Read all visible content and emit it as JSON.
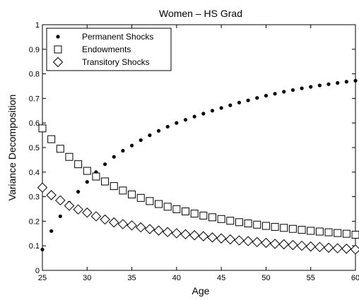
{
  "chart_data": {
    "type": "scatter",
    "title": "Women – HS Grad",
    "xlabel": "Age",
    "ylabel": "Variance Decomposition",
    "xlim": [
      25,
      60
    ],
    "ylim": [
      0,
      1
    ],
    "xticks": [
      "25",
      "30",
      "35",
      "40",
      "45",
      "50",
      "55",
      "60"
    ],
    "yticks": [
      "0",
      "0.1",
      "0.2",
      "0.3",
      "0.4",
      "0.5",
      "0.6",
      "0.7",
      "0.8",
      "0.9",
      "1"
    ],
    "legend_position": "top-left",
    "grid": false,
    "x": [
      25,
      26,
      27,
      28,
      29,
      30,
      31,
      32,
      33,
      34,
      35,
      36,
      37,
      38,
      39,
      40,
      41,
      42,
      43,
      44,
      45,
      46,
      47,
      48,
      49,
      50,
      51,
      52,
      53,
      54,
      55,
      56,
      57,
      58,
      59,
      60
    ],
    "series": [
      {
        "name": "Permanent Shocks",
        "marker": "dot",
        "color": "#000000",
        "values": [
          0.085,
          0.16,
          0.22,
          0.275,
          0.32,
          0.36,
          0.4,
          0.432,
          0.462,
          0.487,
          0.508,
          0.53,
          0.55,
          0.568,
          0.585,
          0.6,
          0.613,
          0.626,
          0.638,
          0.65,
          0.661,
          0.672,
          0.683,
          0.692,
          0.702,
          0.711,
          0.719,
          0.727,
          0.734,
          0.741,
          0.747,
          0.753,
          0.758,
          0.763,
          0.768,
          0.772
        ]
      },
      {
        "name": "Endowments",
        "marker": "square",
        "color": "#000000",
        "values": [
          0.578,
          0.534,
          0.495,
          0.462,
          0.432,
          0.405,
          0.382,
          0.362,
          0.343,
          0.325,
          0.309,
          0.295,
          0.282,
          0.27,
          0.259,
          0.249,
          0.24,
          0.231,
          0.223,
          0.216,
          0.209,
          0.202,
          0.196,
          0.191,
          0.186,
          0.181,
          0.177,
          0.173,
          0.169,
          0.165,
          0.161,
          0.158,
          0.155,
          0.152,
          0.149,
          0.145
        ]
      },
      {
        "name": "Transitory Shocks",
        "marker": "diamond",
        "color": "#000000",
        "values": [
          0.337,
          0.306,
          0.285,
          0.263,
          0.248,
          0.235,
          0.22,
          0.207,
          0.195,
          0.188,
          0.183,
          0.175,
          0.168,
          0.162,
          0.156,
          0.151,
          0.147,
          0.143,
          0.139,
          0.134,
          0.13,
          0.126,
          0.122,
          0.119,
          0.115,
          0.112,
          0.108,
          0.106,
          0.103,
          0.1,
          0.097,
          0.095,
          0.092,
          0.09,
          0.088,
          0.085
        ]
      }
    ]
  }
}
